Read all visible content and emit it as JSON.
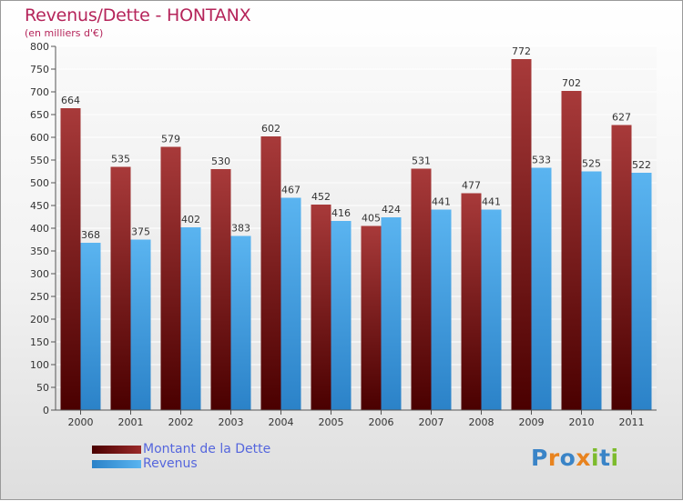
{
  "header": {
    "title": "Revenus/Dette - HONTANX",
    "subtitle": "(en milliers d'€)"
  },
  "legend": {
    "items": [
      {
        "label": "Montant de la Dette",
        "color": "#7a1a1a"
      },
      {
        "label": "Revenus",
        "color": "#4aa3e8"
      }
    ]
  },
  "logo": {
    "letters": [
      {
        "ch": "P",
        "color": "#3a84c7"
      },
      {
        "ch": "r",
        "color": "#e8831f"
      },
      {
        "ch": "o",
        "color": "#3a84c7"
      },
      {
        "ch": "x",
        "color": "#e8831f"
      },
      {
        "ch": "i",
        "color": "#7dbb2d"
      },
      {
        "ch": "t",
        "color": "#3a84c7"
      },
      {
        "ch": "i",
        "color": "#7dbb2d"
      }
    ]
  },
  "chart_data": {
    "type": "bar",
    "categories": [
      "2000",
      "2001",
      "2002",
      "2003",
      "2004",
      "2005",
      "2006",
      "2007",
      "2008",
      "2009",
      "2010",
      "2011"
    ],
    "series": [
      {
        "name": "Montant de la Dette",
        "color": "#7a1a1a",
        "values": [
          664,
          535,
          579,
          530,
          602,
          452,
          405,
          531,
          477,
          772,
          702,
          627
        ]
      },
      {
        "name": "Revenus",
        "color": "#4aa3e8",
        "values": [
          368,
          375,
          402,
          383,
          467,
          416,
          424,
          441,
          441,
          533,
          525,
          522
        ]
      }
    ],
    "ylim": [
      0,
      800
    ],
    "yticks": [
      0,
      50,
      100,
      150,
      200,
      250,
      300,
      350,
      400,
      450,
      500,
      550,
      600,
      650,
      700,
      750,
      800
    ],
    "grid": true,
    "data_labels": true
  }
}
